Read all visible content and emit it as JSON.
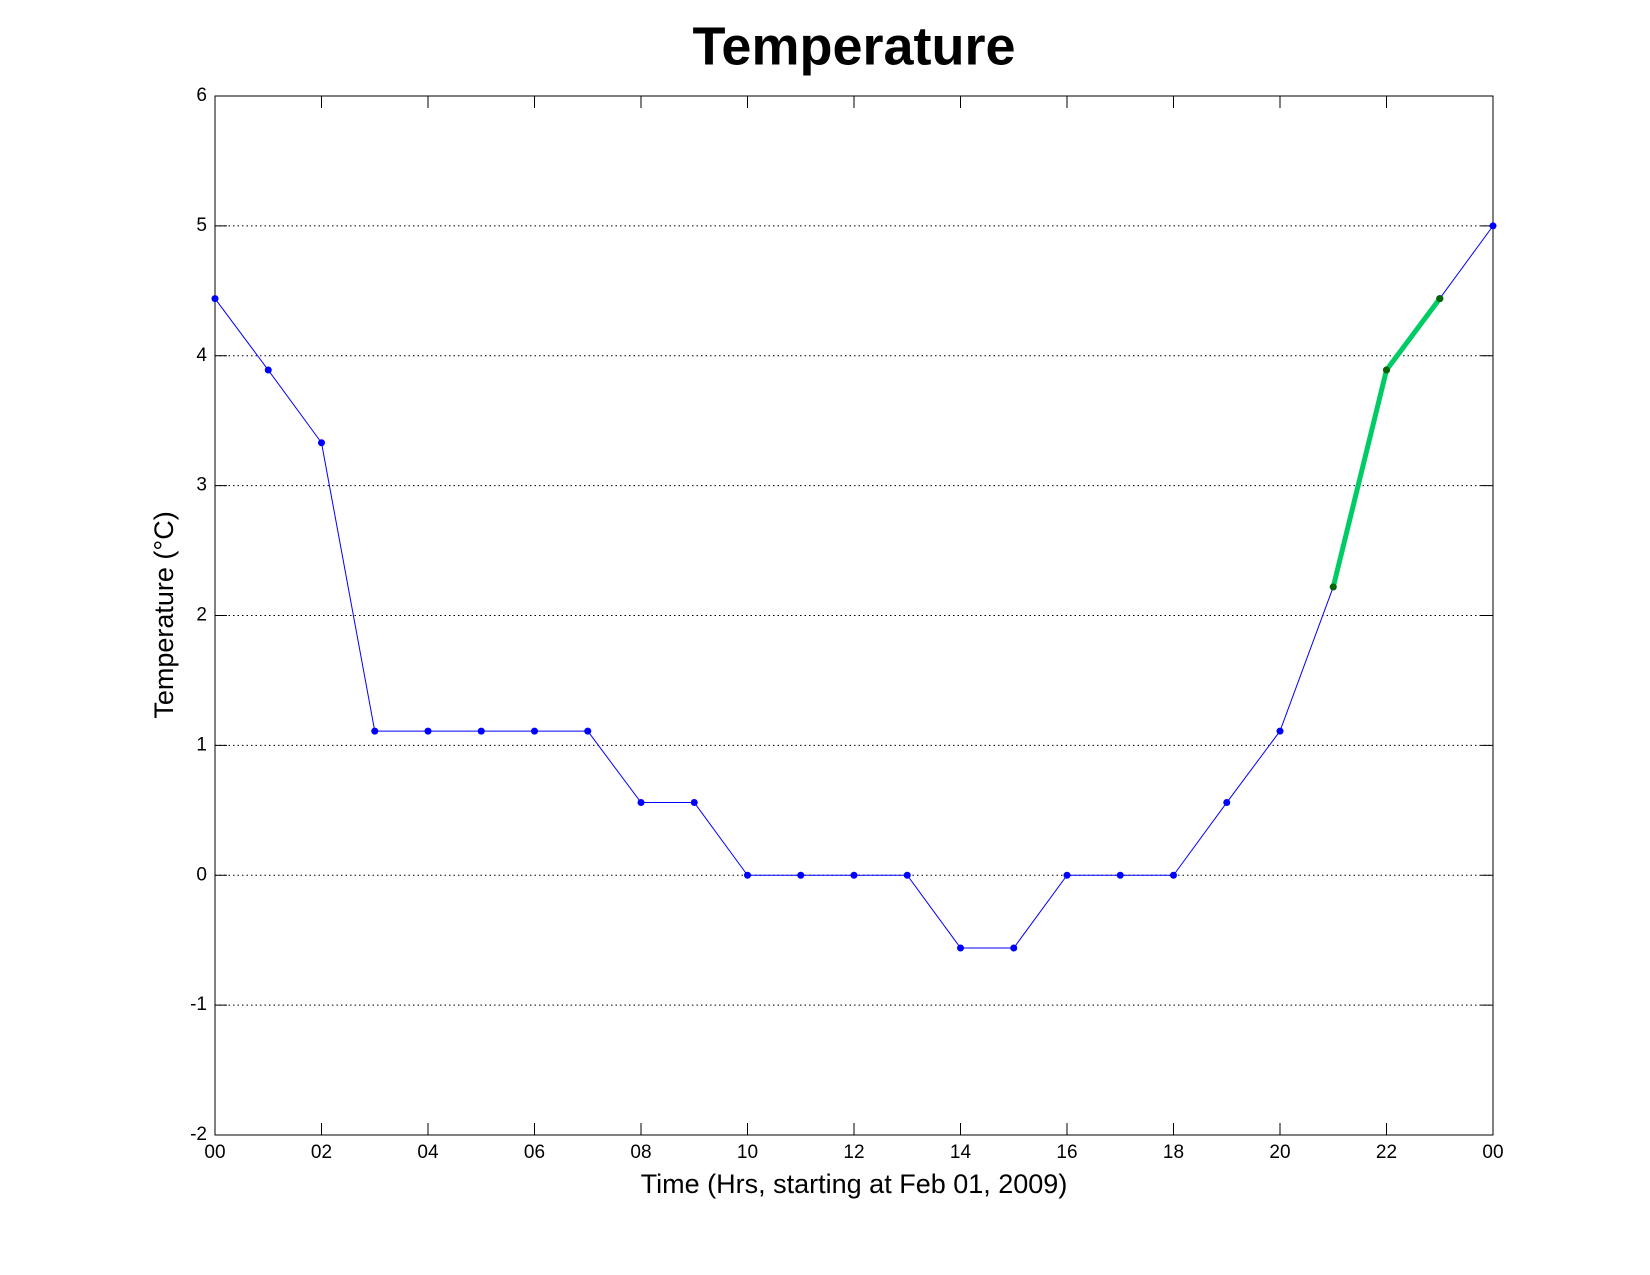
{
  "chart_data": {
    "type": "line",
    "title": "Temperature",
    "xlabel": "Time (Hrs, starting at Feb 01, 2009)",
    "ylabel": "Temperature (°C)",
    "xlim": [
      0,
      24
    ],
    "xticks": [
      {
        "value": 0,
        "label": "00"
      },
      {
        "value": 2,
        "label": "02"
      },
      {
        "value": 4,
        "label": "04"
      },
      {
        "value": 6,
        "label": "06"
      },
      {
        "value": 8,
        "label": "08"
      },
      10,
      12,
      14,
      16,
      18,
      20,
      22,
      {
        "value": 24,
        "label": "00"
      }
    ],
    "ylim": [
      -2,
      6
    ],
    "yticks": [
      -2,
      -1,
      0,
      1,
      2,
      3,
      4,
      5,
      6
    ],
    "grid": true,
    "series": [
      {
        "color": "#0000ff",
        "marker_color": "#0000ff",
        "width": 1,
        "x": [
          0,
          1,
          2,
          3,
          4,
          5,
          6,
          7,
          8,
          9,
          10,
          11,
          12,
          13,
          14,
          15,
          16,
          17,
          18,
          19,
          20,
          21,
          22,
          23,
          24
        ],
        "values": [
          4.44,
          3.89,
          3.33,
          1.11,
          1.11,
          1.11,
          1.11,
          1.11,
          0.56,
          0.56,
          0,
          0,
          0,
          0,
          -0.56,
          -0.56,
          0,
          0,
          0,
          0.56,
          1.11,
          2.22,
          3.89,
          4.44,
          5
        ]
      },
      {
        "color": "#00cc66",
        "marker_color": "#006600",
        "width": 5,
        "x": [
          21,
          22,
          23
        ],
        "values": [
          2.22,
          3.89,
          4.44
        ]
      }
    ]
  }
}
